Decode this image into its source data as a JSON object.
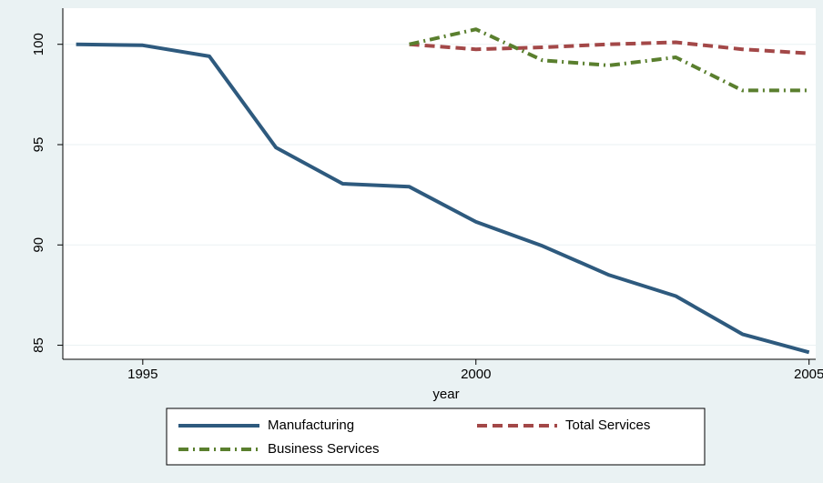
{
  "chart_data": {
    "type": "line",
    "title": "",
    "xlabel": "year",
    "ylabel": "",
    "xlim": [
      1993.8,
      2005.1
    ],
    "ylim": [
      84.3,
      101.8
    ],
    "x_ticks": [
      1995,
      2000,
      2005
    ],
    "y_ticks": [
      85,
      90,
      95,
      100
    ],
    "grid": true,
    "legend_position": "bottom",
    "series": [
      {
        "name": "Manufacturing",
        "color": "#2e5a7e",
        "style": "solid",
        "x": [
          1994,
          1995,
          1996,
          1997,
          1998,
          1999,
          2000,
          2001,
          2002,
          2003,
          2004,
          2005
        ],
        "y": [
          100.0,
          99.95,
          99.4,
          94.85,
          93.05,
          92.9,
          91.15,
          89.95,
          88.5,
          87.45,
          85.55,
          84.65
        ]
      },
      {
        "name": "Total Services",
        "color": "#a34848",
        "style": "dash",
        "x": [
          1999,
          2000,
          2001,
          2002,
          2003,
          2004,
          2005
        ],
        "y": [
          100.0,
          99.75,
          99.85,
          100.0,
          100.1,
          99.75,
          99.55
        ]
      },
      {
        "name": "Business Services",
        "color": "#5a7f2e",
        "style": "dashdot",
        "x": [
          1999,
          2000,
          2001,
          2002,
          2003,
          2004,
          2005
        ],
        "y": [
          100.0,
          100.75,
          99.2,
          98.95,
          99.35,
          97.7,
          97.7
        ]
      }
    ]
  }
}
